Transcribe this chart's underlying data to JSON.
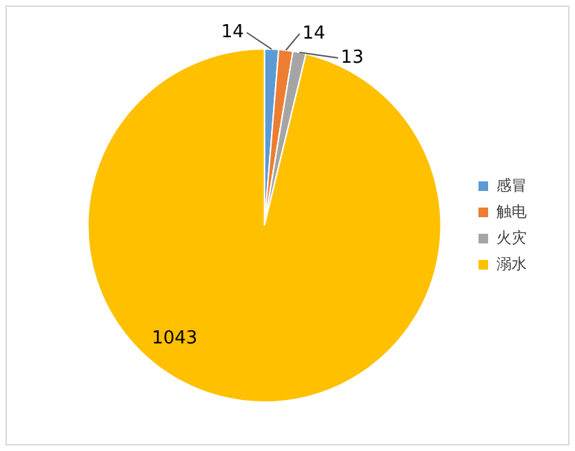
{
  "chart_data": {
    "type": "pie",
    "categories": [
      "感冒",
      "触电",
      "火灾",
      "溺水"
    ],
    "values": [
      14,
      14,
      13,
      1043
    ],
    "colors": [
      "#5b9bd5",
      "#ed7d31",
      "#a5a5a5",
      "#ffc000"
    ],
    "data_labels": true,
    "legend": "right"
  }
}
